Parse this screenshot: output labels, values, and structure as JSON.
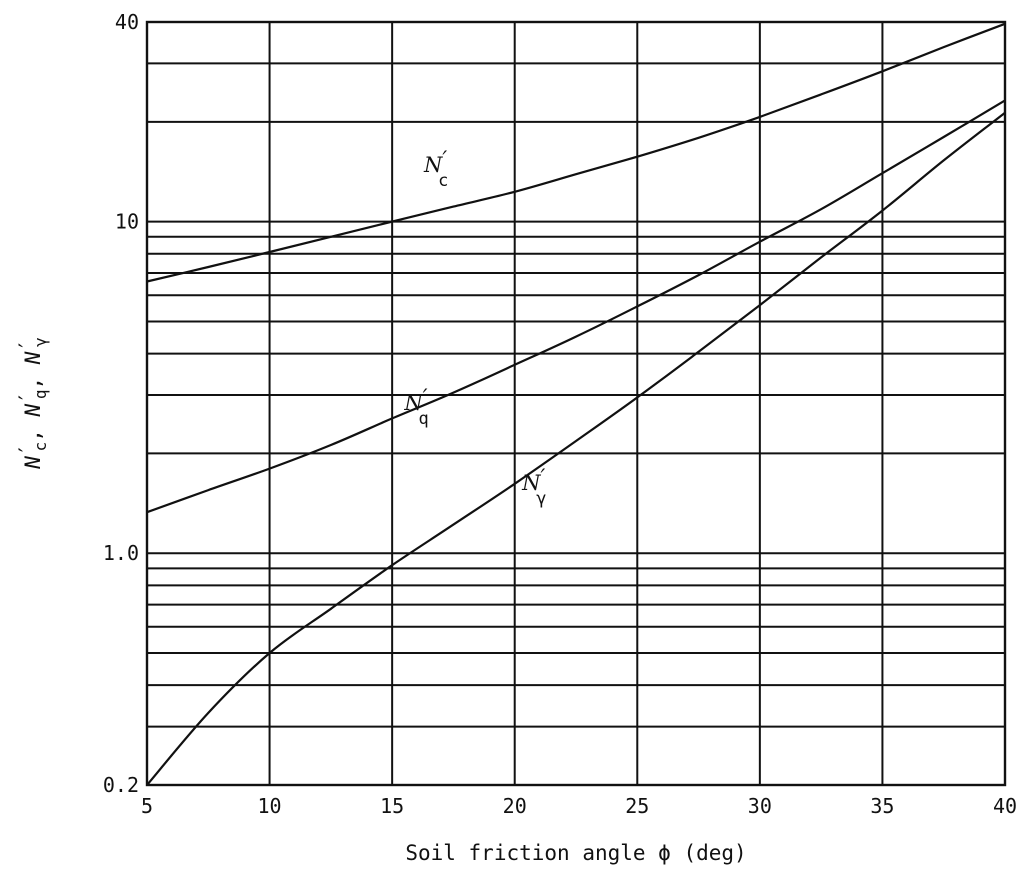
{
  "chart_data": {
    "type": "line",
    "title": "",
    "xlabel": "Soil friction angle ϕ (deg)",
    "ylabel": {
      "parts": [
        {
          "main": "N",
          "sub": "c",
          "prime": "′"
        },
        {
          "main": "N",
          "sub": "q",
          "prime": "′"
        },
        {
          "main": "N",
          "sub": "γ",
          "prime": "′"
        }
      ],
      "separator": ", "
    },
    "xlim": [
      5,
      40
    ],
    "ylim": [
      0.2,
      40
    ],
    "yscale": "log",
    "x_ticks": [
      5,
      10,
      15,
      20,
      25,
      30,
      35,
      40
    ],
    "x_tick_labels": [
      "5",
      "10",
      "15",
      "20",
      "25",
      "30",
      "35",
      "40"
    ],
    "y_ticks": [
      0.2,
      1.0,
      10,
      40
    ],
    "y_tick_labels": [
      "0.2",
      "1.0",
      "10",
      "40"
    ],
    "y_gridlines": [
      0.2,
      0.3,
      0.4,
      0.5,
      0.6,
      0.7,
      0.8,
      0.9,
      1.0,
      2,
      3,
      4,
      5,
      6,
      7,
      8,
      9,
      10,
      20,
      30,
      40
    ],
    "grid": true,
    "series": [
      {
        "label": {
          "main": "N",
          "sub": "c",
          "prime": "′"
        },
        "label_at": {
          "x": 16.3,
          "y": 14.1
        },
        "x": [
          5,
          7.5,
          10,
          12.5,
          15,
          17.5,
          20,
          22.5,
          25,
          27.5,
          30,
          32.5,
          35,
          37.5,
          40
        ],
        "y": [
          6.6,
          7.3,
          8.1,
          9.0,
          10.0,
          11.1,
          12.3,
          13.9,
          15.7,
          17.9,
          20.7,
          24.2,
          28.4,
          33.6,
          39.5
        ]
      },
      {
        "label": {
          "main": "N",
          "sub": "q",
          "prime": "′"
        },
        "label_at": {
          "x": 15.5,
          "y": 2.7
        },
        "x": [
          5,
          7.5,
          10,
          12.5,
          15,
          17.5,
          20,
          22.5,
          25,
          27.5,
          30,
          32.5,
          35,
          37.5,
          40
        ],
        "y": [
          1.33,
          1.55,
          1.8,
          2.12,
          2.55,
          3.05,
          3.7,
          4.5,
          5.55,
          6.9,
          8.7,
          10.9,
          14.0,
          18.0,
          23.2
        ]
      },
      {
        "label": {
          "main": "N",
          "sub": "γ",
          "prime": "′"
        },
        "label_at": {
          "x": 20.3,
          "y": 1.55
        },
        "x": [
          5,
          7.5,
          10,
          12.5,
          15,
          17.5,
          20,
          22.5,
          25,
          27.5,
          30,
          32.5,
          35,
          37.5,
          40
        ],
        "y": [
          0.2,
          0.33,
          0.5,
          0.68,
          0.92,
          1.22,
          1.62,
          2.18,
          2.95,
          4.05,
          5.6,
          7.8,
          10.8,
          15.3,
          21.3
        ]
      }
    ]
  }
}
